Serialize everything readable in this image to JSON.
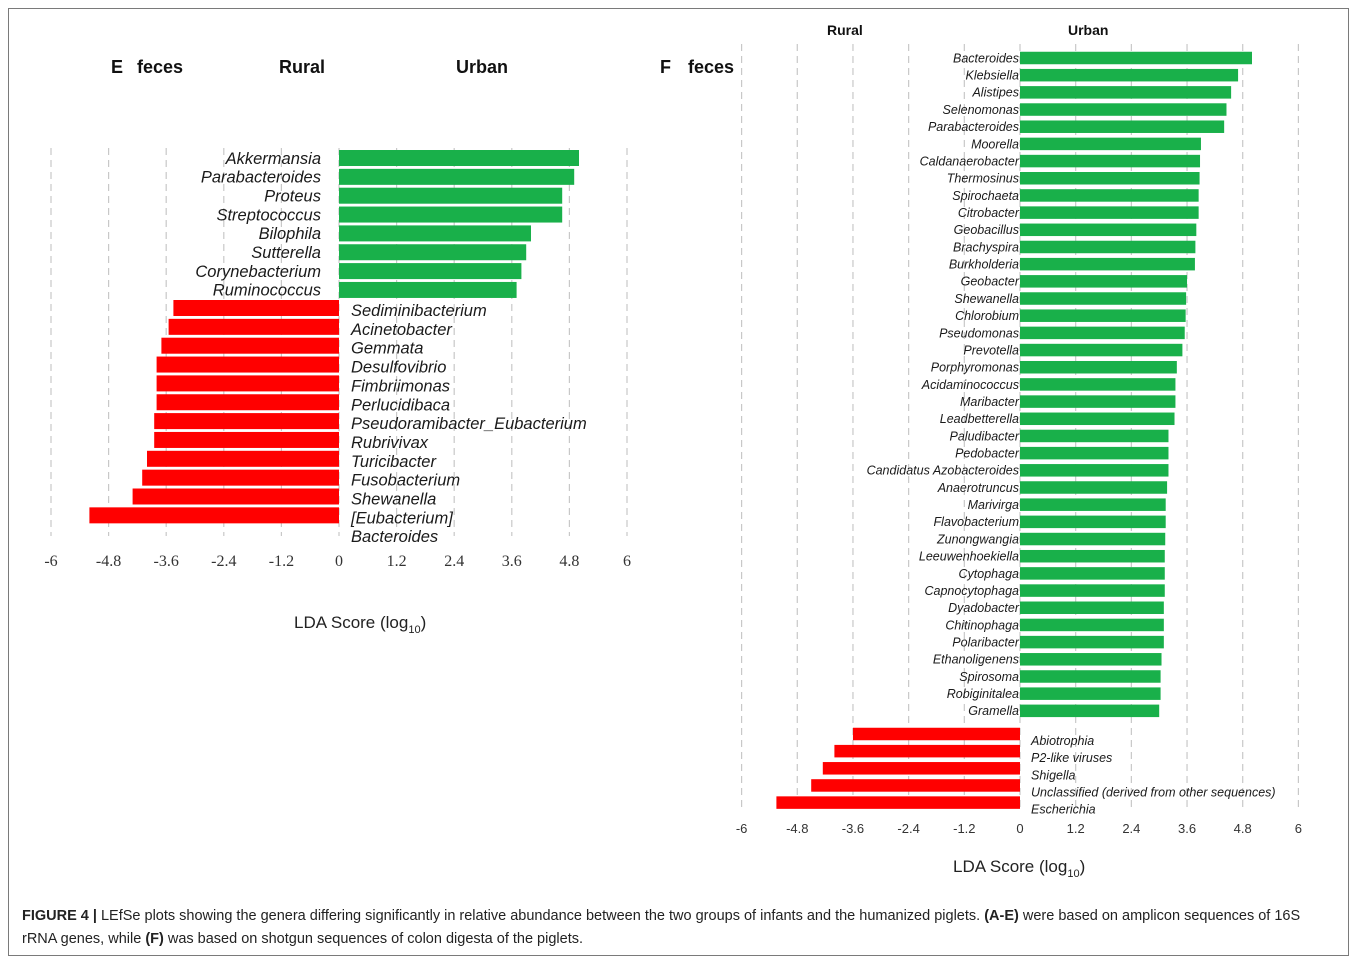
{
  "figure": {
    "caption_label": "FIGURE 4 |",
    "caption_seg1": " LEfSe plots showing the genera differing significantly in relative abundance between the two groups of infants and the humanized piglets. ",
    "caption_ref1": "(A-E)",
    "caption_seg2": " were based on amplicon sequences of 16S rRNA genes, while ",
    "caption_ref2": "(F)",
    "caption_seg3": " was based on shotgun sequences of colon digesta of the piglets."
  },
  "colors": {
    "urban": "#19b04a",
    "rural": "#ff0000",
    "grid": "#c8c8c8",
    "text": "#1a1a1a"
  },
  "chart_data": [
    {
      "panel": "E",
      "type": "bar",
      "orientation": "horizontal",
      "panel_label": "E",
      "sample_label": "feces",
      "group_labels": [
        "Rural",
        "Urban"
      ],
      "xlabel": "LDA Score (log",
      "xlabel_sub": "10",
      "xlabel_close": ")",
      "xlim": [
        -6,
        6
      ],
      "xticks": [
        "-6",
        "-4.8",
        "-3.6",
        "-2.4",
        "-1.2",
        "0",
        "1.2",
        "2.4",
        "3.6",
        "4.8",
        "6"
      ],
      "xtick_values": [
        -6,
        -4.8,
        -3.6,
        -2.4,
        -1.2,
        0,
        1.2,
        2.4,
        3.6,
        4.8,
        6
      ],
      "grid": "vertical dashed",
      "series": [
        {
          "name": "Urban",
          "categories": [
            "Akkermansia",
            "Parabacteroides",
            "Proteus",
            "Streptococcus",
            "Bilophila",
            "Sutterella",
            "Corynebacterium",
            "Ruminococcus"
          ],
          "values": [
            5.0,
            4.9,
            4.65,
            4.65,
            4.0,
            3.9,
            3.8,
            3.7
          ]
        },
        {
          "name": "Rural",
          "categories": [
            "Sediminibacterium",
            "Acinetobacter",
            "Gemmata",
            "Desulfovibrio",
            "Fimbriimonas",
            "Perlucidibaca",
            "Pseudoramibacter_Eubacterium",
            "Rubrivivax",
            "Turicibacter",
            "Fusobacterium",
            "Shewanella",
            "[Eubacterium]",
            "Bacteroides"
          ],
          "values": [
            -3.45,
            -3.55,
            -3.7,
            -3.8,
            -3.8,
            -3.8,
            -3.85,
            -3.85,
            -4.0,
            -4.1,
            -4.3,
            -5.2,
            null
          ]
        }
      ]
    },
    {
      "panel": "F",
      "type": "bar",
      "orientation": "horizontal",
      "panel_label": "F",
      "sample_label": "feces",
      "group_labels": [
        "Rural",
        "Urban"
      ],
      "xlabel": "LDA Score (log",
      "xlabel_sub": "10",
      "xlabel_close": ")",
      "xlim": [
        -6,
        6
      ],
      "xticks": [
        "-6",
        "-4.8",
        "-3.6",
        "-2.4",
        "-1.2",
        "0",
        "1.2",
        "2.4",
        "3.6",
        "4.8",
        "6"
      ],
      "xtick_values": [
        -6,
        -4.8,
        -3.6,
        -2.4,
        -1.2,
        0,
        1.2,
        2.4,
        3.6,
        4.8,
        6
      ],
      "grid": "vertical dashed",
      "series": [
        {
          "name": "Urban",
          "categories": [
            "Bacteroides",
            "Klebsiella",
            "Alistipes",
            "Selenomonas",
            "Parabacteroides",
            "Moorella",
            "Caldanaerobacter",
            "Thermosinus",
            "Spirochaeta",
            "Citrobacter",
            "Geobacillus",
            "Brachyspira",
            "Burkholderia",
            "Geobacter",
            "Shewanella",
            "Chlorobium",
            "Pseudomonas",
            "Prevotella",
            "Porphyromonas",
            "Acidaminococcus",
            "Maribacter",
            "Leadbetterella",
            "Paludibacter",
            "Pedobacter",
            "Candidatus Azobacteroides",
            "Anaerotruncus",
            "Marivirga",
            "Flavobacterium",
            "Zunongwangia",
            "Leeuwenhoekiella",
            "Cytophaga",
            "Capnocytophaga",
            "Dyadobacter",
            "Chitinophaga",
            "Polaribacter",
            "Ethanoligenens",
            "Spirosoma",
            "Robiginitalea",
            "Gramella"
          ],
          "values": [
            5.0,
            4.7,
            4.55,
            4.45,
            4.4,
            3.9,
            3.88,
            3.87,
            3.85,
            3.85,
            3.8,
            3.78,
            3.77,
            3.6,
            3.58,
            3.57,
            3.55,
            3.5,
            3.38,
            3.35,
            3.35,
            3.33,
            3.2,
            3.2,
            3.2,
            3.17,
            3.14,
            3.14,
            3.13,
            3.12,
            3.12,
            3.12,
            3.1,
            3.1,
            3.1,
            3.05,
            3.03,
            3.03,
            3.0
          ]
        },
        {
          "name": "Rural",
          "categories": [
            "Abiotrophia",
            "P2-like viruses",
            "Shigella",
            "Unclassified (derived from other sequences)",
            "Escherichia"
          ],
          "values": [
            -3.6,
            -4.0,
            -4.25,
            -4.5,
            -5.25
          ]
        }
      ]
    }
  ]
}
